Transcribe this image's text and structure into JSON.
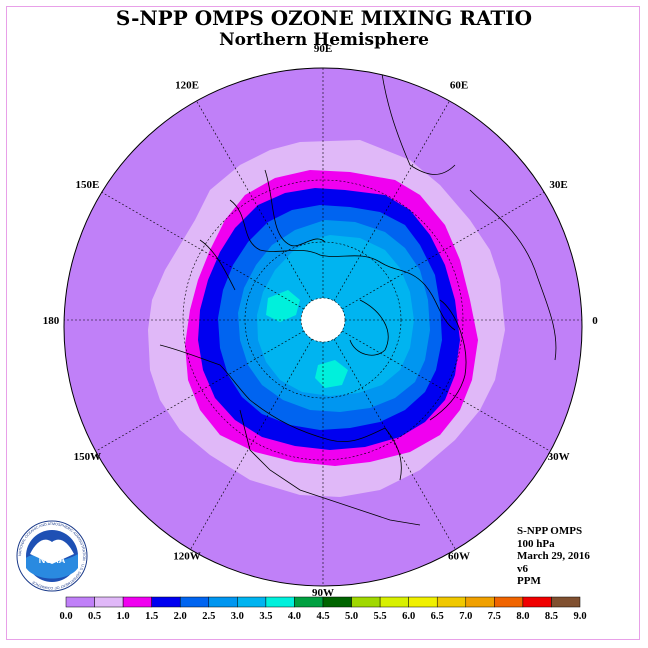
{
  "title": "S-NPP OMPS OZONE MIXING RATIO",
  "subtitle": "Northern Hemisphere",
  "longitude_labels": [
    {
      "text": "90E",
      "lon": 90
    },
    {
      "text": "60E",
      "lon": 60
    },
    {
      "text": "30E",
      "lon": 30
    },
    {
      "text": "0",
      "lon": 0
    },
    {
      "text": "30W",
      "lon": -30
    },
    {
      "text": "60W",
      "lon": -60
    },
    {
      "text": "90W",
      "lon": -90
    },
    {
      "text": "120W",
      "lon": -120
    },
    {
      "text": "150W",
      "lon": -150
    },
    {
      "text": "180",
      "lon": 180
    },
    {
      "text": "150E",
      "lon": 150
    },
    {
      "text": "120E",
      "lon": 120
    }
  ],
  "info": {
    "instrument": "S-NPP OMPS",
    "level": "100 hPa",
    "date": "March 29, 2016",
    "version": "v6",
    "units": "PPM"
  },
  "logo": {
    "text": "NOAA",
    "ring_text": "NATIONAL OCEANIC AND ATMOSPHERIC ADMINISTRATION · U.S. DEPARTMENT OF COMMERCE"
  },
  "colorbar": {
    "labels": [
      "0.0",
      "0.5",
      "1.0",
      "1.5",
      "2.0",
      "2.5",
      "3.0",
      "3.5",
      "4.0",
      "4.5",
      "5.0",
      "5.5",
      "6.0",
      "6.5",
      "7.0",
      "7.5",
      "8.0",
      "8.5",
      "9.0"
    ],
    "colors": [
      "#c080f8",
      "#e0b8f8",
      "#f000f0",
      "#0000f0",
      "#0064f0",
      "#0096f0",
      "#00b4f0",
      "#00f0dc",
      "#00a040",
      "#006400",
      "#a0d800",
      "#d8f000",
      "#f0f000",
      "#f0c800",
      "#f0a000",
      "#f06400",
      "#f00000",
      "#805030"
    ]
  },
  "map_colors": {
    "background": "#c080f8",
    "band_0_5_1_0": "#e0b8f8",
    "band_1_0_1_5": "#f000f0",
    "band_1_5_2_0": "#0000f0",
    "band_2_0_2_5": "#0064f0",
    "band_2_5_3_0": "#0096f0",
    "band_3_0_3_5": "#00b4f0",
    "band_3_5_4_0": "#00f0dc",
    "missing": "#ffffff"
  }
}
